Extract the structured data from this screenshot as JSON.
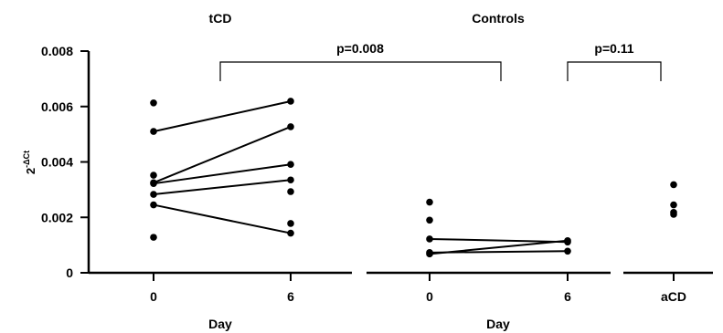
{
  "chart_data": {
    "type": "scatter",
    "ylabel_base": "2",
    "ylabel_exp": "-ΔCt",
    "ylim": [
      0,
      0.008
    ],
    "yticks": [
      "0",
      "0.002",
      "0.004",
      "0.006",
      "0.008"
    ],
    "ytick_values": [
      0,
      0.002,
      0.004,
      0.006,
      0.008
    ],
    "panels": [
      {
        "title": "tCD",
        "xlabel": "Day",
        "categories": [
          "0",
          "6"
        ],
        "points": [
          {
            "x": "0",
            "y": 0.00613
          },
          {
            "x": "0",
            "y": 0.0051
          },
          {
            "x": "0",
            "y": 0.00352
          },
          {
            "x": "0",
            "y": 0.00325
          },
          {
            "x": "0",
            "y": 0.00322
          },
          {
            "x": "0",
            "y": 0.00283
          },
          {
            "x": "0",
            "y": 0.00245
          },
          {
            "x": "0",
            "y": 0.00128
          },
          {
            "x": "6",
            "y": 0.00619
          },
          {
            "x": "6",
            "y": 0.00527
          },
          {
            "x": "6",
            "y": 0.00391
          },
          {
            "x": "6",
            "y": 0.00335
          },
          {
            "x": "6",
            "y": 0.00293
          },
          {
            "x": "6",
            "y": 0.00178
          },
          {
            "x": "6",
            "y": 0.00143
          }
        ],
        "pairs": [
          [
            0.0051,
            0.00619
          ],
          [
            0.00325,
            0.00527
          ],
          [
            0.00322,
            0.00391
          ],
          [
            0.00283,
            0.00335
          ],
          [
            0.00245,
            0.00143
          ]
        ]
      },
      {
        "title": "Controls",
        "xlabel": "Day",
        "categories": [
          "0",
          "6"
        ],
        "points": [
          {
            "x": "0",
            "y": 0.00255
          },
          {
            "x": "0",
            "y": 0.0019
          },
          {
            "x": "0",
            "y": 0.00122
          },
          {
            "x": "0",
            "y": 0.00073
          },
          {
            "x": "0",
            "y": 0.00068
          },
          {
            "x": "6",
            "y": 0.00116
          },
          {
            "x": "6",
            "y": 0.00111
          },
          {
            "x": "6",
            "y": 0.00078
          }
        ],
        "pairs": [
          [
            0.00122,
            0.00111
          ],
          [
            0.00068,
            0.00116
          ],
          [
            0.00073,
            0.00078
          ]
        ]
      },
      {
        "title": "",
        "xlabel": "",
        "categories": [
          "aCD"
        ],
        "points": [
          {
            "x": "aCD",
            "y": 0.00318
          },
          {
            "x": "aCD",
            "y": 0.00245
          },
          {
            "x": "aCD",
            "y": 0.00218
          },
          {
            "x": "aCD",
            "y": 0.00211
          }
        ],
        "pairs": []
      }
    ],
    "comparisons": [
      {
        "label": "p=0.008",
        "from": "tCD",
        "to": "Controls"
      },
      {
        "label": "p=0.11",
        "from": "Controls day 6",
        "to": "aCD"
      }
    ]
  }
}
